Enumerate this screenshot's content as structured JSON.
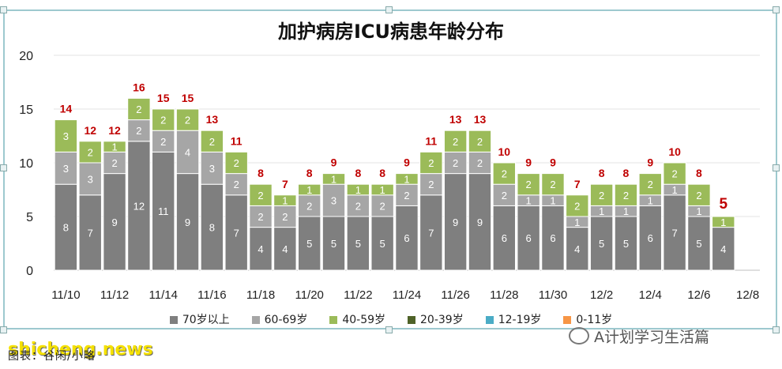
{
  "chart_data": {
    "type": "bar",
    "stacked": true,
    "title": "加护病房ICU病患年龄分布",
    "categories": [
      "11/10",
      "11/11",
      "11/12",
      "11/13",
      "11/14",
      "11/15",
      "11/16",
      "11/17",
      "11/18",
      "11/19",
      "11/20",
      "11/21",
      "11/22",
      "11/23",
      "11/24",
      "11/25",
      "11/26",
      "11/27",
      "11/28",
      "11/29",
      "11/30",
      "12/1",
      "12/2",
      "12/3",
      "12/4",
      "12/5",
      "12/6",
      "12/7",
      "12/8"
    ],
    "x_tick_labels": [
      "11/10",
      "11/12",
      "11/14",
      "11/16",
      "11/18",
      "11/20",
      "11/22",
      "11/24",
      "11/26",
      "11/28",
      "11/30",
      "12/2",
      "12/4",
      "12/6",
      "12/8"
    ],
    "ylim": [
      0,
      20
    ],
    "y_ticks": [
      0,
      5,
      10,
      15,
      20
    ],
    "grid": true,
    "legend_position": "bottom",
    "series": [
      {
        "name": "70岁以上",
        "color": "#7f7f7f",
        "values": [
          8,
          7,
          9,
          12,
          11,
          9,
          8,
          7,
          4,
          4,
          5,
          5,
          5,
          5,
          6,
          7,
          9,
          9,
          6,
          6,
          6,
          4,
          5,
          5,
          6,
          7,
          5,
          4,
          null
        ]
      },
      {
        "name": "60-69岁",
        "color": "#a6a6a6",
        "values": [
          3,
          3,
          2,
          2,
          2,
          4,
          3,
          2,
          2,
          2,
          2,
          3,
          2,
          2,
          2,
          2,
          2,
          2,
          2,
          1,
          1,
          1,
          1,
          1,
          1,
          1,
          1,
          0,
          null
        ]
      },
      {
        "name": "40-59岁",
        "color": "#9bbb59",
        "values": [
          3,
          2,
          1,
          2,
          2,
          2,
          2,
          2,
          2,
          1,
          1,
          1,
          1,
          1,
          1,
          2,
          2,
          2,
          2,
          2,
          2,
          2,
          2,
          2,
          2,
          2,
          2,
          1,
          null
        ]
      },
      {
        "name": "20-39岁",
        "color": "#4f6228",
        "values": [
          0,
          0,
          0,
          0,
          0,
          0,
          0,
          0,
          0,
          0,
          0,
          0,
          0,
          0,
          0,
          0,
          0,
          0,
          0,
          0,
          0,
          0,
          0,
          0,
          0,
          0,
          0,
          0,
          null
        ]
      },
      {
        "name": "12-19岁",
        "color": "#4bacc6",
        "values": [
          0,
          0,
          0,
          0,
          0,
          0,
          0,
          0,
          0,
          0,
          0,
          0,
          0,
          0,
          0,
          0,
          0,
          0,
          0,
          0,
          0,
          0,
          0,
          0,
          0,
          0,
          0,
          0,
          null
        ]
      },
      {
        "name": "0-11岁",
        "color": "#f79646",
        "values": [
          0,
          0,
          0,
          0,
          0,
          0,
          0,
          0,
          0,
          0,
          0,
          0,
          0,
          0,
          0,
          0,
          0,
          0,
          0,
          0,
          0,
          0,
          0,
          0,
          0,
          0,
          0,
          0,
          null
        ]
      }
    ],
    "totals": [
      14,
      12,
      12,
      16,
      15,
      15,
      13,
      11,
      8,
      7,
      8,
      9,
      8,
      8,
      9,
      11,
      13,
      13,
      10,
      9,
      9,
      7,
      8,
      8,
      9,
      10,
      8,
      5,
      null
    ],
    "highlight_total_index": 27,
    "total_label_color": "#c00000"
  },
  "source_text": "图表：谷闲/小略",
  "watermark_text": "shicheng.news",
  "wechat_text": "A计划学习生活篇"
}
